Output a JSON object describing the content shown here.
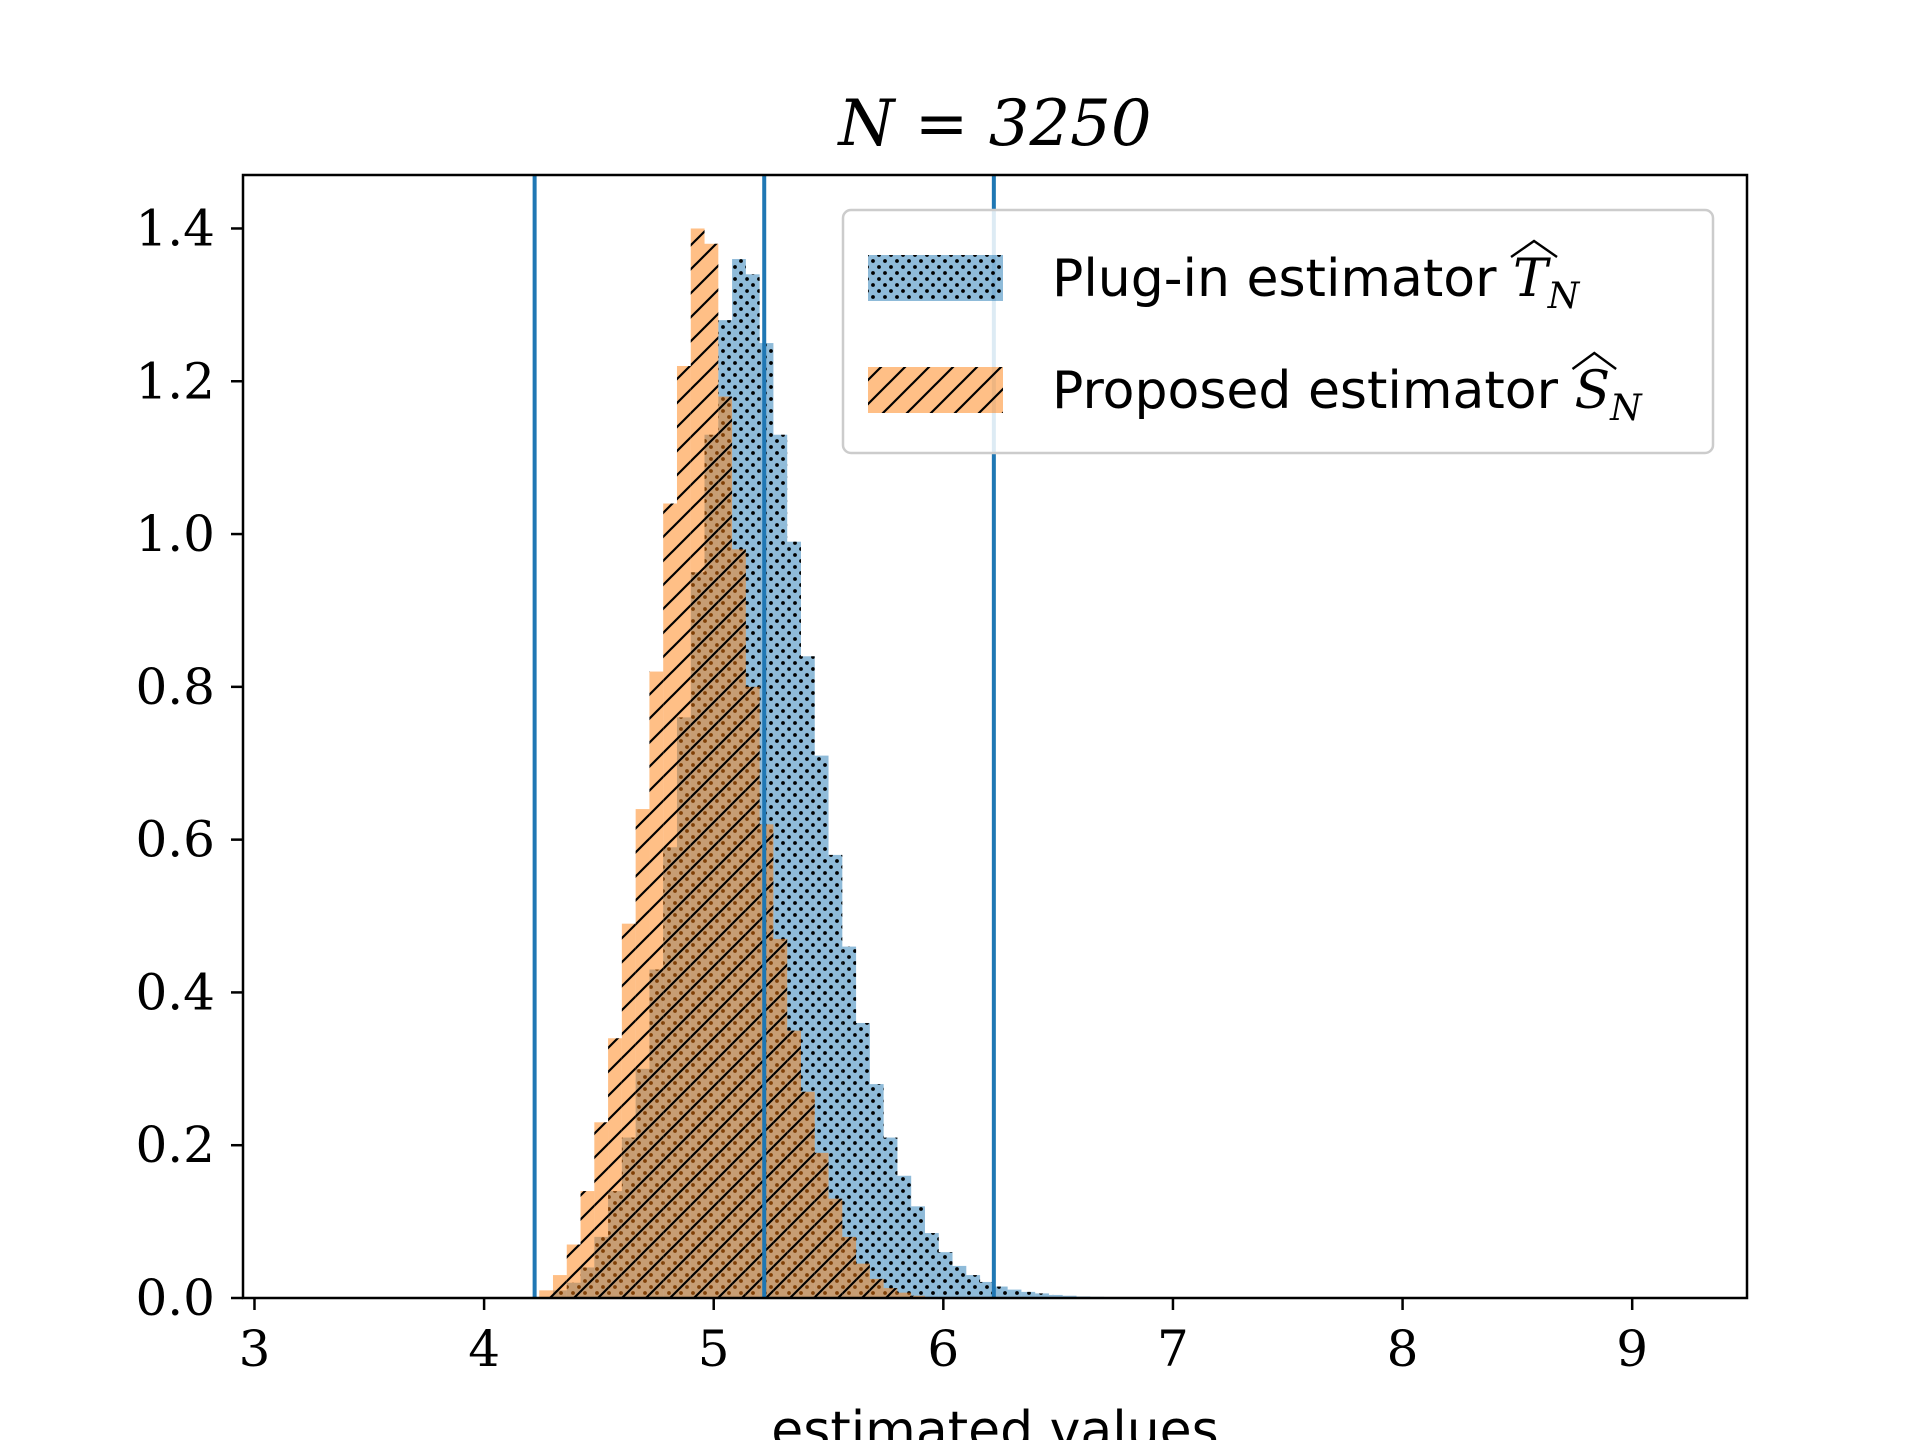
{
  "chart_data": {
    "type": "bar",
    "title": "N = 3250",
    "xlabel": "estimated values",
    "ylabel": "",
    "xlim": [
      2.95,
      9.5
    ],
    "ylim": [
      0,
      1.47
    ],
    "xticks": [
      3,
      4,
      5,
      6,
      7,
      8,
      9
    ],
    "xtick_labels": [
      "3",
      "4",
      "5",
      "6",
      "7",
      "8",
      "9"
    ],
    "yticks": [
      0.0,
      0.2,
      0.4,
      0.6,
      0.8,
      1.0,
      1.2,
      1.4
    ],
    "ytick_labels": [
      "0.0",
      "0.2",
      "0.4",
      "0.6",
      "0.8",
      "1.0",
      "1.2",
      "1.4"
    ],
    "grid": false,
    "legend_position": "top-right",
    "vlines": [
      4.22,
      5.22,
      6.22
    ],
    "vline_color": "#1f77b4",
    "series": [
      {
        "name": "Plug-in estimator \\widehat{T}_N",
        "legend_main": "Plug-in estimator ",
        "legend_letter": "T",
        "legend_sub": "N",
        "hatch": "dots",
        "color": "#1f77b4",
        "alpha": 0.5,
        "bin_width": 0.06,
        "bin_start": 4.3,
        "values": [
          0.01,
          0.02,
          0.04,
          0.08,
          0.14,
          0.21,
          0.3,
          0.43,
          0.59,
          0.76,
          0.95,
          1.13,
          1.28,
          1.36,
          1.34,
          1.25,
          1.13,
          0.99,
          0.84,
          0.71,
          0.58,
          0.46,
          0.36,
          0.28,
          0.21,
          0.16,
          0.12,
          0.085,
          0.06,
          0.042,
          0.03,
          0.021,
          0.015,
          0.011,
          0.008,
          0.006,
          0.004,
          0.003,
          0.002,
          0.0015,
          0.001,
          0.001,
          0.0008,
          0.0006,
          0.0005,
          0.0004,
          0.0003,
          0.0003,
          0.0002,
          0.0002,
          0.0001,
          0.0001,
          0.0001,
          0.0001,
          0.0001
        ]
      },
      {
        "name": "Proposed estimator \\widehat{S}_N",
        "legend_main": "Proposed estimator ",
        "legend_letter": "S",
        "legend_sub": "N",
        "hatch": "diagonal",
        "color": "#ff7f0e",
        "alpha": 0.5,
        "bin_width": 0.06,
        "bin_start": 4.24,
        "values": [
          0.01,
          0.03,
          0.07,
          0.14,
          0.23,
          0.34,
          0.49,
          0.64,
          0.82,
          1.04,
          1.22,
          1.4,
          1.38,
          1.18,
          0.98,
          0.8,
          0.62,
          0.47,
          0.35,
          0.27,
          0.19,
          0.13,
          0.08,
          0.045,
          0.025,
          0.013,
          0.007,
          0.003,
          0.001
        ]
      }
    ]
  }
}
